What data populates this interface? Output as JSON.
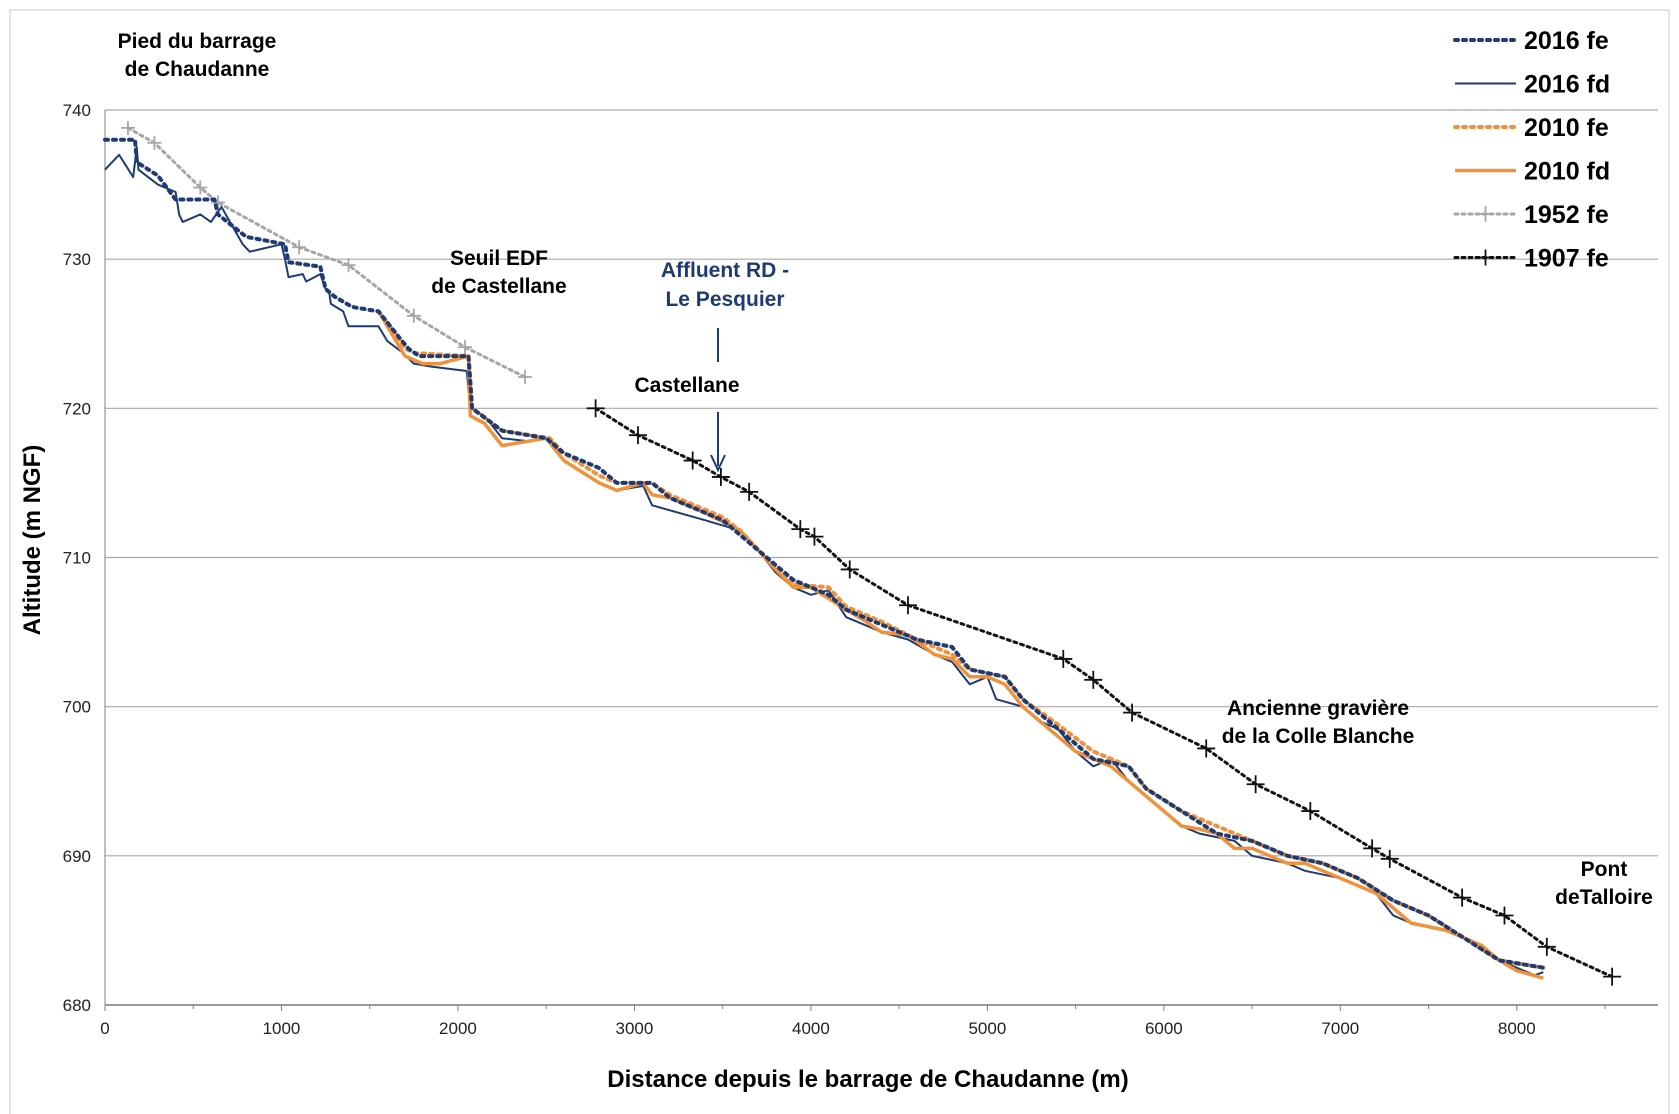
{
  "colors": {
    "navy": "#1f3b73",
    "orange": "#f0923b",
    "gray": "#a6a6a6",
    "black": "#111111",
    "grid": "#a9a9a9"
  },
  "chart_data": {
    "type": "line",
    "title": "",
    "xlabel": "Distance depuis le barrage de Chaudanne (m)",
    "ylabel": "Altitude (m NGF)",
    "xlim": [
      0,
      8800
    ],
    "ylim": [
      680,
      740
    ],
    "xticks": [
      "0",
      "1000",
      "2000",
      "3000",
      "4000",
      "5000",
      "6000",
      "7000",
      "8000"
    ],
    "yticks": [
      "680",
      "690",
      "700",
      "710",
      "720",
      "730",
      "740"
    ],
    "grid": "horizontal",
    "legend_position": "top-right",
    "series": [
      {
        "name": "2016 fe",
        "style": "dotted",
        "color": "#1f3b73",
        "points": [
          [
            0,
            738
          ],
          [
            170,
            738
          ],
          [
            180,
            736.5
          ],
          [
            300,
            735.6
          ],
          [
            400,
            734
          ],
          [
            620,
            734
          ],
          [
            640,
            733
          ],
          [
            800,
            731.5
          ],
          [
            1020,
            731
          ],
          [
            1040,
            729.8
          ],
          [
            1220,
            729.5
          ],
          [
            1250,
            728
          ],
          [
            1300,
            727.5
          ],
          [
            1400,
            726.8
          ],
          [
            1550,
            726.5
          ],
          [
            1650,
            725
          ],
          [
            1720,
            724
          ],
          [
            1780,
            723.5
          ],
          [
            2060,
            723.5
          ],
          [
            2080,
            720
          ],
          [
            2250,
            718.5
          ],
          [
            2500,
            718
          ],
          [
            2600,
            717
          ],
          [
            2800,
            716
          ],
          [
            2900,
            715
          ],
          [
            3100,
            715
          ],
          [
            3200,
            714
          ],
          [
            3500,
            712.5
          ],
          [
            3600,
            711.5
          ],
          [
            3800,
            709.5
          ],
          [
            3900,
            708.5
          ],
          [
            4100,
            707.5
          ],
          [
            4200,
            706.5
          ],
          [
            4400,
            705.5
          ],
          [
            4600,
            704.5
          ],
          [
            4800,
            704
          ],
          [
            4900,
            702.5
          ],
          [
            5100,
            702
          ],
          [
            5200,
            700.5
          ],
          [
            5400,
            698.5
          ],
          [
            5600,
            696.5
          ],
          [
            5800,
            696
          ],
          [
            5900,
            694.5
          ],
          [
            6100,
            693
          ],
          [
            6300,
            691.5
          ],
          [
            6500,
            691
          ],
          [
            6700,
            690
          ],
          [
            6900,
            689.5
          ],
          [
            7100,
            688.5
          ],
          [
            7300,
            687
          ],
          [
            7500,
            686
          ],
          [
            7700,
            684.5
          ],
          [
            7900,
            683
          ],
          [
            8150,
            682.5
          ]
        ]
      },
      {
        "name": "2016 fd",
        "style": "solid",
        "color": "#1f3b73",
        "points": [
          [
            0,
            736
          ],
          [
            80,
            737
          ],
          [
            160,
            735.5
          ],
          [
            180,
            737.5
          ],
          [
            190,
            736
          ],
          [
            300,
            735
          ],
          [
            400,
            734.5
          ],
          [
            420,
            733
          ],
          [
            440,
            732.5
          ],
          [
            540,
            733
          ],
          [
            600,
            732.5
          ],
          [
            660,
            733.5
          ],
          [
            780,
            731
          ],
          [
            820,
            730.5
          ],
          [
            1000,
            731
          ],
          [
            1020,
            730
          ],
          [
            1040,
            728.8
          ],
          [
            1120,
            729
          ],
          [
            1140,
            728.5
          ],
          [
            1220,
            729
          ],
          [
            1250,
            728
          ],
          [
            1270,
            727.8
          ],
          [
            1280,
            727
          ],
          [
            1350,
            726.5
          ],
          [
            1380,
            725.5
          ],
          [
            1550,
            725.5
          ],
          [
            1600,
            724.5
          ],
          [
            1680,
            723.8
          ],
          [
            1750,
            723
          ],
          [
            1850,
            722.8
          ],
          [
            2050,
            722.5
          ],
          [
            2070,
            720
          ],
          [
            2150,
            719.5
          ],
          [
            2250,
            718
          ],
          [
            2400,
            717.8
          ],
          [
            2520,
            718
          ],
          [
            2600,
            716.5
          ],
          [
            2800,
            715
          ],
          [
            2900,
            714.5
          ],
          [
            3050,
            714.8
          ],
          [
            3100,
            713.5
          ],
          [
            3400,
            712.5
          ],
          [
            3600,
            711.8
          ],
          [
            3700,
            710.5
          ],
          [
            3800,
            709
          ],
          [
            3900,
            708
          ],
          [
            4000,
            707.5
          ],
          [
            4100,
            707.8
          ],
          [
            4200,
            706
          ],
          [
            4300,
            705.5
          ],
          [
            4400,
            705
          ],
          [
            4550,
            704.5
          ],
          [
            4700,
            703.5
          ],
          [
            4800,
            703
          ],
          [
            4900,
            701.5
          ],
          [
            5000,
            702
          ],
          [
            5050,
            700.5
          ],
          [
            5200,
            700
          ],
          [
            5300,
            699
          ],
          [
            5400,
            698.5
          ],
          [
            5500,
            697
          ],
          [
            5600,
            696
          ],
          [
            5700,
            696.5
          ],
          [
            5800,
            695
          ],
          [
            5900,
            694
          ],
          [
            6000,
            693
          ],
          [
            6100,
            692
          ],
          [
            6200,
            691.5
          ],
          [
            6400,
            691
          ],
          [
            6500,
            690
          ],
          [
            6700,
            689.5
          ],
          [
            6800,
            689
          ],
          [
            7000,
            688.5
          ],
          [
            7200,
            687.5
          ],
          [
            7300,
            686
          ],
          [
            7400,
            685.5
          ],
          [
            7600,
            685
          ],
          [
            7800,
            684
          ],
          [
            7900,
            683
          ],
          [
            8100,
            682
          ],
          [
            8150,
            682.2
          ]
        ]
      },
      {
        "name": "2010 fe",
        "style": "dotted",
        "color": "#f0923b",
        "points": [
          [
            1550,
            726.5
          ],
          [
            1650,
            725
          ],
          [
            1700,
            724
          ],
          [
            1760,
            723.7
          ],
          [
            2060,
            723.5
          ],
          [
            2080,
            720
          ],
          [
            2250,
            718.5
          ],
          [
            2520,
            718
          ],
          [
            2600,
            717
          ],
          [
            2800,
            715.5
          ],
          [
            2900,
            715
          ],
          [
            3100,
            715
          ],
          [
            3200,
            714.2
          ],
          [
            3500,
            712.7
          ],
          [
            3600,
            711.8
          ],
          [
            3800,
            709.3
          ],
          [
            3900,
            708.2
          ],
          [
            4100,
            708
          ],
          [
            4200,
            706.7
          ],
          [
            4400,
            705.7
          ],
          [
            4600,
            704.5
          ],
          [
            4800,
            703.5
          ],
          [
            4900,
            702.5
          ],
          [
            5100,
            702
          ],
          [
            5200,
            700.5
          ],
          [
            5400,
            698.8
          ],
          [
            5600,
            697
          ],
          [
            5800,
            696
          ],
          [
            5900,
            694.5
          ],
          [
            6100,
            693
          ],
          [
            6300,
            692
          ],
          [
            6500,
            691
          ],
          [
            6700,
            690
          ],
          [
            6900,
            689.5
          ],
          [
            7100,
            688.5
          ],
          [
            7300,
            687
          ],
          [
            7500,
            686
          ],
          [
            7700,
            684.5
          ],
          [
            7900,
            683
          ],
          [
            8150,
            682.5
          ]
        ]
      },
      {
        "name": "2010 fd",
        "style": "solid",
        "color": "#f0923b",
        "points": [
          [
            1550,
            726.5
          ],
          [
            1650,
            724.5
          ],
          [
            1700,
            723.5
          ],
          [
            1800,
            723
          ],
          [
            1900,
            723
          ],
          [
            2060,
            723.5
          ],
          [
            2070,
            719.5
          ],
          [
            2150,
            719
          ],
          [
            2250,
            717.5
          ],
          [
            2500,
            718
          ],
          [
            2600,
            716.5
          ],
          [
            2800,
            715
          ],
          [
            2900,
            714.5
          ],
          [
            3050,
            715
          ],
          [
            3100,
            714.2
          ],
          [
            3200,
            714
          ],
          [
            3400,
            713
          ],
          [
            3600,
            711.8
          ],
          [
            3700,
            710.5
          ],
          [
            3800,
            709.2
          ],
          [
            3900,
            708
          ],
          [
            4000,
            708
          ],
          [
            4200,
            706.5
          ],
          [
            4300,
            705.8
          ],
          [
            4400,
            705
          ],
          [
            4550,
            704.8
          ],
          [
            4700,
            703.5
          ],
          [
            4800,
            703.2
          ],
          [
            4900,
            702
          ],
          [
            5000,
            702
          ],
          [
            5100,
            701.5
          ],
          [
            5200,
            700
          ],
          [
            5300,
            699
          ],
          [
            5400,
            698
          ],
          [
            5500,
            697
          ],
          [
            5600,
            696.5
          ],
          [
            5700,
            696
          ],
          [
            5800,
            695
          ],
          [
            5900,
            694
          ],
          [
            6000,
            693
          ],
          [
            6100,
            692
          ],
          [
            6200,
            691.8
          ],
          [
            6300,
            691.5
          ],
          [
            6400,
            690.5
          ],
          [
            6500,
            690.5
          ],
          [
            6700,
            689.5
          ],
          [
            6800,
            689.5
          ],
          [
            7000,
            688.5
          ],
          [
            7200,
            687.5
          ],
          [
            7300,
            686.5
          ],
          [
            7400,
            685.5
          ],
          [
            7600,
            685
          ],
          [
            7800,
            684
          ],
          [
            7900,
            683
          ],
          [
            8000,
            682.3
          ],
          [
            8150,
            681.8
          ]
        ]
      },
      {
        "name": "1952 fe",
        "style": "dotted-plus",
        "color": "#a6a6a6",
        "points": [
          [
            130,
            738.8
          ],
          [
            280,
            737.8
          ],
          [
            540,
            734.8
          ],
          [
            640,
            733.8
          ],
          [
            1100,
            730.8
          ],
          [
            1380,
            729.6
          ],
          [
            1750,
            726.2
          ],
          [
            2040,
            724.1
          ],
          [
            2380,
            722.1
          ]
        ]
      },
      {
        "name": "1907 fe",
        "style": "dotted-plus",
        "color": "#111111",
        "points": [
          [
            2780,
            720
          ],
          [
            3020,
            718.2
          ],
          [
            3330,
            716.5
          ],
          [
            3490,
            715.4
          ],
          [
            3650,
            714.4
          ],
          [
            3940,
            711.9
          ],
          [
            4020,
            711.4
          ],
          [
            4220,
            709.2
          ],
          [
            4550,
            706.8
          ],
          [
            5430,
            703.2
          ],
          [
            5600,
            701.8
          ],
          [
            5820,
            699.6
          ],
          [
            6240,
            697.2
          ],
          [
            6520,
            694.8
          ],
          [
            6830,
            693
          ],
          [
            7180,
            690.5
          ],
          [
            7280,
            689.8
          ],
          [
            7690,
            687.2
          ],
          [
            7930,
            686
          ],
          [
            8170,
            683.9
          ],
          [
            8540,
            681.9
          ]
        ]
      }
    ],
    "annotations": [
      {
        "id": "pied-barrage",
        "lines": [
          "Pied du barrage",
          "de Chaudanne"
        ],
        "color": "#000000"
      },
      {
        "id": "seuil-edf",
        "lines": [
          "Seuil EDF",
          "de Castellane"
        ],
        "color": "#000000"
      },
      {
        "id": "affluent",
        "lines": [
          "Affluent RD -",
          "Le Pesquier"
        ],
        "color": "#1f3b73"
      },
      {
        "id": "castellane",
        "lines": [
          "Castellane"
        ],
        "color": "#000000"
      },
      {
        "id": "colle-blanche",
        "lines": [
          "Ancienne gravière",
          "de la Colle Blanche"
        ],
        "color": "#000000"
      },
      {
        "id": "pont-talloire",
        "lines": [
          "Pont",
          "deTalloire"
        ],
        "color": "#000000"
      }
    ]
  }
}
